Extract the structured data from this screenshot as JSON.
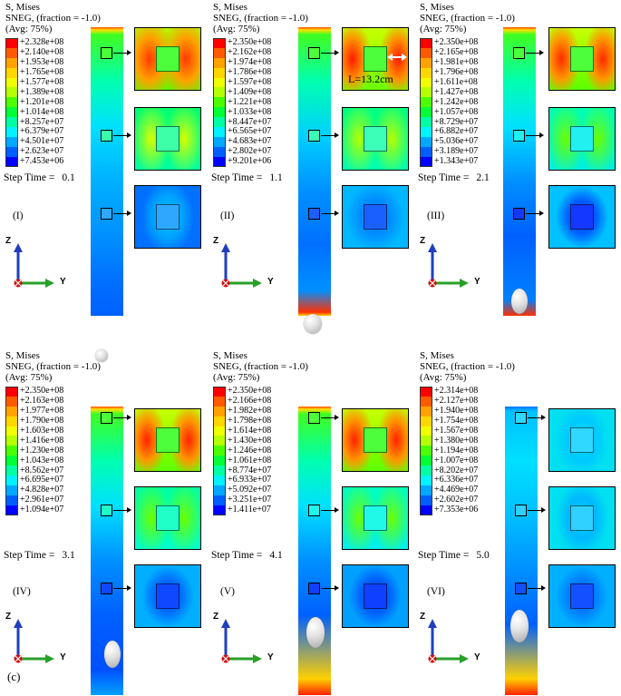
{
  "figure": {
    "part_label": "(c)",
    "length_annotation": "L=13.2cm",
    "axis_z": "Z",
    "axis_y": "Y",
    "header_line1": "S, Mises",
    "header_line2": "SNEG, (fraction = -1.0)",
    "header_line3": "(Avg: 75%)",
    "step_prefix": "Step Time ="
  },
  "colors": {
    "legend_scale": [
      "#ff0000",
      "#ff5a00",
      "#ffa200",
      "#ffd700",
      "#f0ff00",
      "#b5ff00",
      "#4cff00",
      "#00ff34",
      "#00ffa2",
      "#00f3ff",
      "#00a8ff",
      "#005eff",
      "#0000ff"
    ],
    "arrow": "#000000"
  },
  "panels": [
    {
      "id": "I",
      "roman": "(I)",
      "step_value": "0.1",
      "legend": [
        "+2.328e+08",
        "+2.140e+08",
        "+1.953e+08",
        "+1.765e+08",
        "+1.577e+08",
        "+1.389e+08",
        "+1.201e+08",
        "+1.014e+08",
        "+8.257e+07",
        "+6.379e+07",
        "+4.501e+07",
        "+2.623e+07",
        "+7.453e+06"
      ]
    },
    {
      "id": "II",
      "roman": "(II)",
      "step_value": "1.1",
      "legend": [
        "+2.350e+08",
        "+2.162e+08",
        "+1.974e+08",
        "+1.786e+08",
        "+1.597e+08",
        "+1.409e+08",
        "+1.221e+08",
        "+1.033e+08",
        "+8.447e+07",
        "+6.565e+07",
        "+4.683e+07",
        "+2.802e+07",
        "+9.201e+06"
      ]
    },
    {
      "id": "III",
      "roman": "(III)",
      "step_value": "2.1",
      "legend": [
        "+2.350e+08",
        "+2.165e+08",
        "+1.981e+08",
        "+1.796e+08",
        "+1.611e+08",
        "+1.427e+08",
        "+1.242e+08",
        "+1.057e+08",
        "+8.729e+07",
        "+6.882e+07",
        "+5.036e+07",
        "+3.189e+07",
        "+1.343e+07"
      ]
    },
    {
      "id": "IV",
      "roman": "(IV)",
      "step_value": "3.1",
      "legend": [
        "+2.350e+08",
        "+2.163e+08",
        "+1.977e+08",
        "+1.790e+08",
        "+1.603e+08",
        "+1.416e+08",
        "+1.230e+08",
        "+1.043e+08",
        "+8.562e+07",
        "+6.695e+07",
        "+4.828e+07",
        "+2.961e+07",
        "+1.094e+07"
      ]
    },
    {
      "id": "V",
      "roman": "(V)",
      "step_value": "4.1",
      "legend": [
        "+2.350e+08",
        "+2.166e+08",
        "+1.982e+08",
        "+1.798e+08",
        "+1.614e+08",
        "+1.430e+08",
        "+1.246e+08",
        "+1.061e+08",
        "+8.774e+07",
        "+6.933e+07",
        "+5.092e+07",
        "+3.251e+07",
        "+1.411e+07"
      ]
    },
    {
      "id": "VI",
      "roman": "(VI)",
      "step_value": "5.0",
      "legend": [
        "+2.314e+08",
        "+2.127e+08",
        "+1.940e+08",
        "+1.754e+08",
        "+1.567e+08",
        "+1.380e+08",
        "+1.194e+08",
        "+1.007e+08",
        "+8.202e+07",
        "+6.336e+07",
        "+4.469e+07",
        "+2.602e+07",
        "+7.353e+06"
      ]
    }
  ]
}
